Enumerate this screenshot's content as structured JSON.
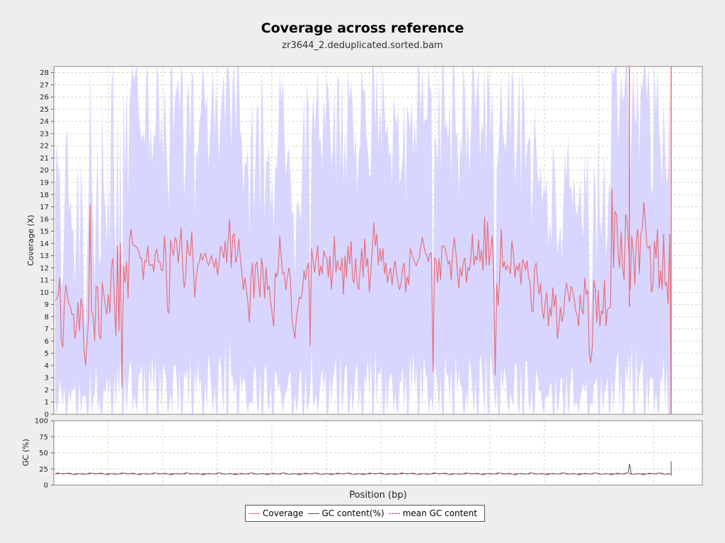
{
  "title": "Coverage across reference",
  "subtitle": "zr3644_2.deduplicated.sorted.bam",
  "colors": {
    "coverage": "#e8707e",
    "band": "#d8d6fe",
    "gc": "#555555",
    "mean_gc": "#e0305a",
    "grid": "#d8b89a",
    "background": "#ffffff"
  },
  "chart_data": [
    {
      "type": "line",
      "ylabel": "Coverage (X)",
      "ylim": [
        0,
        28.5
      ],
      "y_ticks": [
        "0",
        "1",
        "2",
        "3",
        "4",
        "5",
        "6",
        "7",
        "8",
        "9",
        "10",
        "11",
        "12",
        "13",
        "14",
        "15",
        "16",
        "17",
        "18",
        "19",
        "20",
        "21",
        "22",
        "23",
        "24",
        "25",
        "26",
        "27",
        "28"
      ],
      "grid": true,
      "series": [
        {
          "name": "Coverage",
          "color": "#e8707e",
          "values": [
            9.3,
            9.5,
            9.8,
            11.2,
            6,
            5.5,
            9,
            10.6,
            9.8,
            9,
            8.8,
            8.2,
            8.2,
            6.2,
            7,
            9.2,
            6.8,
            9.5,
            8.6,
            5.2,
            4,
            6,
            7.8,
            17.2,
            8.5,
            8,
            6,
            10.5,
            10.4,
            6.4,
            6.2,
            10.8,
            9.8,
            9,
            8.2,
            9.8,
            8.3,
            12,
            12.8,
            9.2,
            6.4,
            13.8,
            6.8,
            14,
            2.2,
            12.2,
            10.8,
            12.5,
            9.5,
            14.2,
            15.2,
            14,
            13.8,
            13.8,
            13.6,
            13.4,
            12.8,
            12.8,
            11,
            12.6,
            12.5,
            13.8,
            12.2,
            12.2,
            12.3,
            11.7,
            13.2,
            13.5,
            12.5,
            12.5,
            11.8,
            11.8,
            14.6,
            12.8,
            8.5,
            8.3,
            14.3,
            13.6,
            13,
            14.5,
            14.2,
            12.4,
            13.6,
            15.3,
            12.2,
            10.3,
            11.2,
            14.3,
            13.2,
            13,
            15,
            12.2,
            9.6,
            11.2,
            12.2,
            12.5,
            13.2,
            12.6,
            13,
            13.2,
            12.6,
            12.2,
            12.6,
            13,
            12.4,
            12,
            12.8,
            11.4,
            12.4,
            13.8,
            13.4,
            12.8,
            14.2,
            12.4,
            14.3,
            16,
            12,
            14.6,
            14.8,
            12.4,
            13,
            14.4,
            12.8,
            11.6,
            10.2,
            11.2,
            10.2,
            9.2,
            7.5,
            11.2,
            12.4,
            9.5,
            12.2,
            12.5,
            10.8,
            9.6,
            12.8,
            11.8,
            9.5,
            12,
            10.2,
            10.5,
            9.2,
            8.2,
            7.2,
            11.6,
            11.2,
            12,
            14.6,
            12.8,
            11.5,
            11.6,
            10.2,
            11.2,
            12,
            11.2,
            7.8,
            7,
            6.2,
            8,
            8.8,
            9.6,
            9.5,
            10.2,
            11.8,
            11,
            12,
            12.4,
            5.6,
            13.6,
            12.6,
            11.6,
            12.8,
            13.8,
            11.3,
            12.2,
            11.5,
            13.4,
            13,
            12.8,
            11.2,
            13,
            10.2,
            11.8,
            14.6,
            11.6,
            12.6,
            12,
            11.8,
            12.8,
            9.8,
            13,
            11.2,
            13.8,
            12.3,
            14.2,
            11,
            10.8,
            12.8,
            10.8,
            10.2,
            11.8,
            13.6,
            11.2,
            14.4,
            12.1,
            12.8,
            10,
            11.6,
            13.6,
            15.7,
            13.8,
            14.8,
            12.2,
            13.6,
            12.5,
            13.6,
            11.5,
            12.4,
            10.8,
            11.5,
            12,
            10.6,
            11.8,
            12.6,
            11.5,
            10.8,
            10.2,
            10.8,
            12,
            12.4,
            10,
            11.3,
            10.6,
            13.6,
            13.2,
            12.8,
            12.4,
            12.2,
            12.6,
            12.8,
            13.8,
            14.5,
            13.8,
            13.2,
            13,
            12.5,
            13.2,
            13.2,
            3.5,
            12.8,
            12.6,
            10.8,
            12.8,
            11,
            13.8,
            13.8,
            13.6,
            13,
            12.3,
            12.6,
            11,
            13.2,
            14.5,
            13.4,
            11.8,
            10.3,
            12,
            11.3,
            12.5,
            12.8,
            10.8,
            12,
            11.8,
            12.8,
            14.8,
            12.2,
            13,
            12.6,
            14.3,
            12.5,
            13.5,
            11.8,
            16.2,
            12.2,
            15.8,
            12.2,
            13.5,
            14.6,
            11.3,
            3.2,
            10.7,
            8.9,
            11.5,
            15.2,
            12,
            12.5,
            11.8,
            12.2,
            12,
            11.5,
            14.2,
            13.2,
            11.2,
            12.2,
            11.8,
            12.4,
            10.6,
            12.7,
            12.4,
            11.8,
            12.6,
            11.2,
            10.8,
            8.5,
            8.4,
            12,
            12.4,
            10.8,
            9.8,
            10.8,
            8.5,
            7.8,
            9.2,
            10,
            7.2,
            8.8,
            8,
            10.4,
            8.8,
            9.8,
            6.2,
            7.2,
            8.8,
            7.6,
            8.2,
            9.8,
            10.8,
            10,
            9.2,
            10.5,
            10.2,
            9.5,
            8.5,
            8.2,
            7.2,
            9.8,
            8.6,
            8.2,
            11.2,
            9.8,
            10.2,
            5,
            4.2,
            5.5,
            11,
            10.2,
            7.5,
            10.2,
            7.2,
            8.5,
            8.2,
            11,
            7.2,
            8.6,
            8.7,
            8.8,
            18.5,
            12,
            16.6,
            16.4,
            13.2,
            12,
            15,
            12,
            11,
            16.4,
            15.8,
            13.6,
            10.2,
            14.6,
            13.4,
            10.6,
            14.2,
            15.2,
            11.5,
            14.8,
            15.2,
            17.4,
            15.8,
            13.8,
            13.6,
            13.8,
            10,
            10.5,
            14.2,
            12.8,
            15.2,
            10.3,
            11.8,
            10.2,
            14.8,
            10.6,
            10.8,
            9,
            14.8,
            0.3
          ]
        }
      ]
    },
    {
      "type": "line",
      "ylabel": "GC (%)",
      "ylim": [
        0,
        100
      ],
      "y_ticks": [
        "0",
        "25",
        "50",
        "75",
        "100"
      ],
      "xlabel": "Position (bp)",
      "grid": true,
      "series": [
        {
          "name": "GC content(%)",
          "color": "#555555",
          "values": [
            17.5,
            33,
            37
          ]
        },
        {
          "name": "mean GC content",
          "color": "#e0305a",
          "values": [
            17.5
          ]
        }
      ]
    }
  ]
}
